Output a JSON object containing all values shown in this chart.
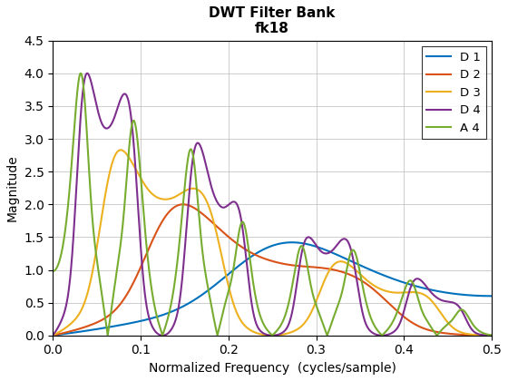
{
  "title_line1": "DWT Filter Bank",
  "title_line2": "fk18",
  "xlabel": "Normalized Frequency  (cycles/sample)",
  "ylabel": "Magnitude",
  "xlim": [
    0,
    0.5
  ],
  "ylim": [
    0,
    4.5
  ],
  "xticks": [
    0,
    0.1,
    0.2,
    0.3,
    0.4,
    0.5
  ],
  "yticks": [
    0,
    0.5,
    1.0,
    1.5,
    2.0,
    2.5,
    3.0,
    3.5,
    4.0,
    4.5
  ],
  "colors": {
    "D1": "#0072BD",
    "D2": "#D95319",
    "D3": "#EDB120",
    "D4": "#7E2F8E",
    "A4": "#77AC30"
  },
  "legend_labels": [
    "D 1",
    "D 2",
    "D 3",
    "D 4",
    "A 4"
  ],
  "background_color": "#ffffff",
  "grid_color": "#c0c0c0",
  "title_fontsize": 11,
  "label_fontsize": 10,
  "legend_fontsize": 9.5,
  "linewidth": 1.5
}
